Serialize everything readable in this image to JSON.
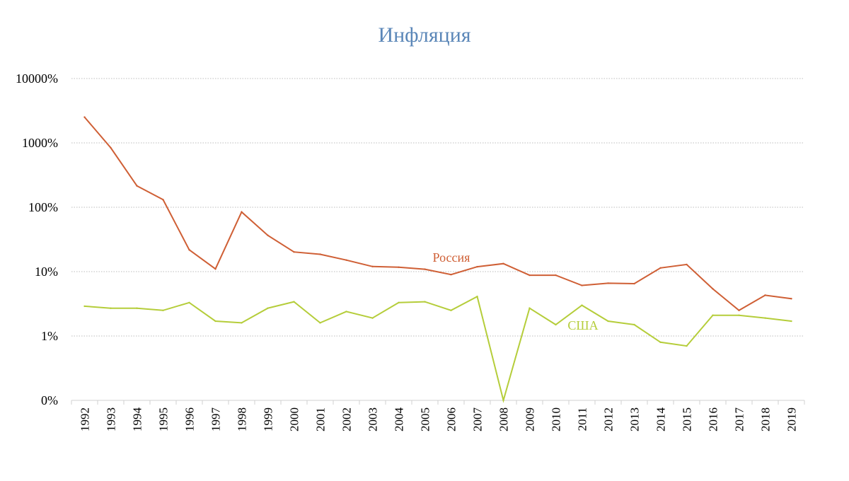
{
  "chart_data": {
    "type": "line",
    "title": "Инфляция",
    "xlabel": "",
    "ylabel": "",
    "y_scale": "log",
    "y_ticks": [
      {
        "value": 0,
        "label": "0%"
      },
      {
        "value": 1,
        "label": "1%"
      },
      {
        "value": 10,
        "label": "10%"
      },
      {
        "value": 100,
        "label": "100%"
      },
      {
        "value": 1000,
        "label": "1000%"
      },
      {
        "value": 10000,
        "label": "10000%"
      }
    ],
    "grid": "horizontal dotted",
    "legend": "inline labels",
    "categories": [
      "1992",
      "1993",
      "1994",
      "1995",
      "1996",
      "1997",
      "1998",
      "1999",
      "2000",
      "2001",
      "2002",
      "2003",
      "2004",
      "2005",
      "2006",
      "2007",
      "2008",
      "2009",
      "2010",
      "2011",
      "2012",
      "2013",
      "2014",
      "2015",
      "2016",
      "2017",
      "2018",
      "2019"
    ],
    "series": [
      {
        "name": "Россия",
        "color": "#cf5f35",
        "values": [
          2510,
          840,
          215,
          131,
          21.8,
          11.0,
          84.5,
          36.6,
          20.2,
          18.6,
          15.1,
          12.0,
          11.7,
          10.9,
          9.0,
          11.9,
          13.3,
          8.8,
          8.8,
          6.1,
          6.6,
          6.5,
          11.4,
          12.9,
          5.4,
          2.5,
          4.3,
          3.8
        ]
      },
      {
        "name": "США",
        "color": "#b5cd3a",
        "values": [
          2.9,
          2.7,
          2.7,
          2.5,
          3.3,
          1.7,
          1.6,
          2.7,
          3.4,
          1.6,
          2.4,
          1.9,
          3.3,
          3.4,
          2.5,
          4.1,
          0.1,
          2.7,
          1.5,
          3.0,
          1.7,
          1.5,
          0.8,
          0.7,
          2.1,
          2.1,
          1.9,
          1.7
        ]
      }
    ]
  }
}
